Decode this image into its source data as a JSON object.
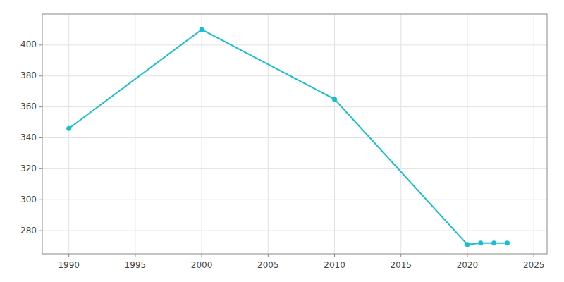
{
  "chart_data": {
    "type": "line",
    "x": [
      1990,
      2000,
      2010,
      2020,
      2021,
      2022,
      2023
    ],
    "values": [
      346,
      410,
      365,
      271,
      272,
      272,
      272
    ],
    "color": "#17becf",
    "marker": "circle",
    "xlim": [
      1988,
      2026
    ],
    "ylim": [
      265,
      420
    ],
    "xticks": [
      1990,
      1995,
      2000,
      2005,
      2010,
      2015,
      2020,
      2025
    ],
    "yticks": [
      280,
      300,
      320,
      340,
      360,
      380,
      400
    ],
    "grid": true
  }
}
